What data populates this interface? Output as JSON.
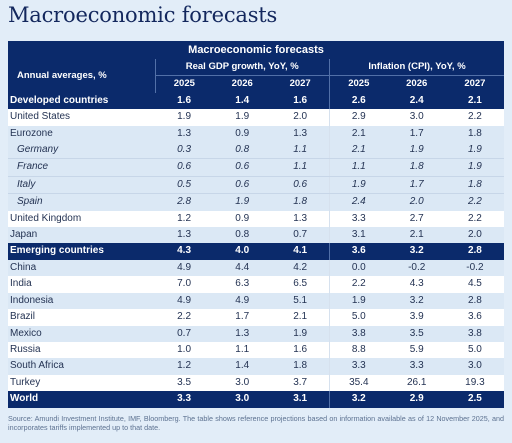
{
  "page_title": "Macroeconomic forecasts",
  "table": {
    "title": "Macroeconomic forecasts",
    "row_header": "Annual averages, %",
    "groups": [
      "Real GDP growth, YoY, %",
      "Inflation (CPI), YoY, %"
    ],
    "years": [
      "2025",
      "2026",
      "2027",
      "2025",
      "2026",
      "2027"
    ],
    "rows": [
      {
        "label": "Developed countries",
        "values": [
          "1.6",
          "1.4",
          "1.6",
          "2.6",
          "2.4",
          "2.1"
        ]
      },
      {
        "label": "United States",
        "values": [
          "1.9",
          "1.9",
          "2.0",
          "2.9",
          "3.0",
          "2.2"
        ]
      },
      {
        "label": "Eurozone",
        "values": [
          "1.3",
          "0.9",
          "1.3",
          "2.1",
          "1.7",
          "1.8"
        ]
      },
      {
        "label": "Germany",
        "values": [
          "0.3",
          "0.8",
          "1.1",
          "2.1",
          "1.9",
          "1.9"
        ]
      },
      {
        "label": "France",
        "values": [
          "0.6",
          "0.6",
          "1.1",
          "1.1",
          "1.8",
          "1.9"
        ]
      },
      {
        "label": "Italy",
        "values": [
          "0.5",
          "0.6",
          "0.6",
          "1.9",
          "1.7",
          "1.8"
        ]
      },
      {
        "label": "Spain",
        "values": [
          "2.8",
          "1.9",
          "1.8",
          "2.4",
          "2.0",
          "2.2"
        ]
      },
      {
        "label": "United Kingdom",
        "values": [
          "1.2",
          "0.9",
          "1.3",
          "3.3",
          "2.7",
          "2.2"
        ]
      },
      {
        "label": "Japan",
        "values": [
          "1.3",
          "0.8",
          "0.7",
          "3.1",
          "2.1",
          "2.0"
        ]
      },
      {
        "label": "Emerging countries",
        "values": [
          "4.3",
          "4.0",
          "4.1",
          "3.6",
          "3.2",
          "2.8"
        ]
      },
      {
        "label": "China",
        "values": [
          "4.9",
          "4.4",
          "4.2",
          "0.0",
          "-0.2",
          "-0.2"
        ]
      },
      {
        "label": "India",
        "values": [
          "7.0",
          "6.3",
          "6.5",
          "2.2",
          "4.3",
          "4.5"
        ]
      },
      {
        "label": "Indonesia",
        "values": [
          "4.9",
          "4.9",
          "5.1",
          "1.9",
          "3.2",
          "2.8"
        ]
      },
      {
        "label": "Brazil",
        "values": [
          "2.2",
          "1.7",
          "2.1",
          "5.0",
          "3.9",
          "3.6"
        ]
      },
      {
        "label": "Mexico",
        "values": [
          "0.7",
          "1.3",
          "1.9",
          "3.8",
          "3.5",
          "3.8"
        ]
      },
      {
        "label": "Russia",
        "values": [
          "1.0",
          "1.1",
          "1.6",
          "8.8",
          "5.9",
          "5.0"
        ]
      },
      {
        "label": "South Africa",
        "values": [
          "1.2",
          "1.4",
          "1.8",
          "3.3",
          "3.3",
          "3.0"
        ]
      },
      {
        "label": "Turkey",
        "values": [
          "3.5",
          "3.0",
          "3.7",
          "35.4",
          "26.1",
          "19.3"
        ]
      },
      {
        "label": "World",
        "values": [
          "3.3",
          "3.0",
          "3.1",
          "3.2",
          "2.9",
          "2.5"
        ]
      }
    ]
  },
  "source": "Source: Amundi Investment Institute, IMF, Bloomberg. The table shows reference projections based on information available as of 12 November 2025, and incorporates tariffs implemented up to that date."
}
